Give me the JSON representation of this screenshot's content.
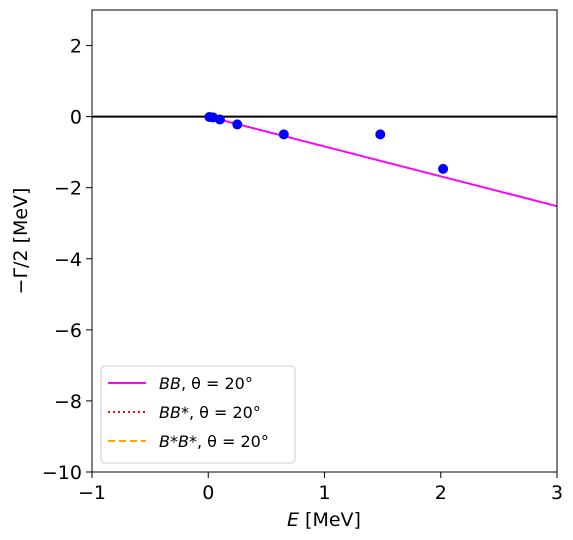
{
  "chart_data": {
    "type": "scatter",
    "xlabel_var": "E",
    "xlabel_unit": "[MeV]",
    "ylabel": "−Γ/2 [MeV]",
    "xlim": [
      -1,
      3
    ],
    "ylim": [
      -10,
      3
    ],
    "xticks": [
      -1,
      0,
      1,
      2,
      3
    ],
    "xtick_labels": [
      "−1",
      "0",
      "1",
      "2",
      "3"
    ],
    "yticks": [
      2,
      0,
      -2,
      -4,
      -6,
      -8,
      -10
    ],
    "ytick_labels": [
      "2",
      "0",
      "−2",
      "−4",
      "−6",
      "−8",
      "−10"
    ],
    "grid": false,
    "legend_position": "lower-left",
    "reference_line": {
      "y": 0,
      "color": "#000000"
    },
    "points": {
      "color": "#0000ff",
      "x": [
        0.01,
        0.04,
        0.1,
        0.25,
        0.65,
        1.48,
        2.02
      ],
      "y": [
        -0.01,
        -0.02,
        -0.08,
        -0.22,
        -0.5,
        -0.5,
        -1.47
      ]
    },
    "series": [
      {
        "name_var": "BB",
        "name_rest": ", θ = 20°",
        "color": "#ff00ff",
        "style": "solid",
        "x": [
          0,
          3
        ],
        "y": [
          0,
          -2.52
        ]
      },
      {
        "name_var": "BB*",
        "name_rest": ", θ = 20°",
        "color": "#ff0000",
        "style": "dotted",
        "x": [],
        "y": []
      },
      {
        "name_var": "B*B*",
        "name_rest": ", θ = 20°",
        "color": "#ffa500",
        "style": "dashed",
        "x": [],
        "y": []
      }
    ]
  }
}
